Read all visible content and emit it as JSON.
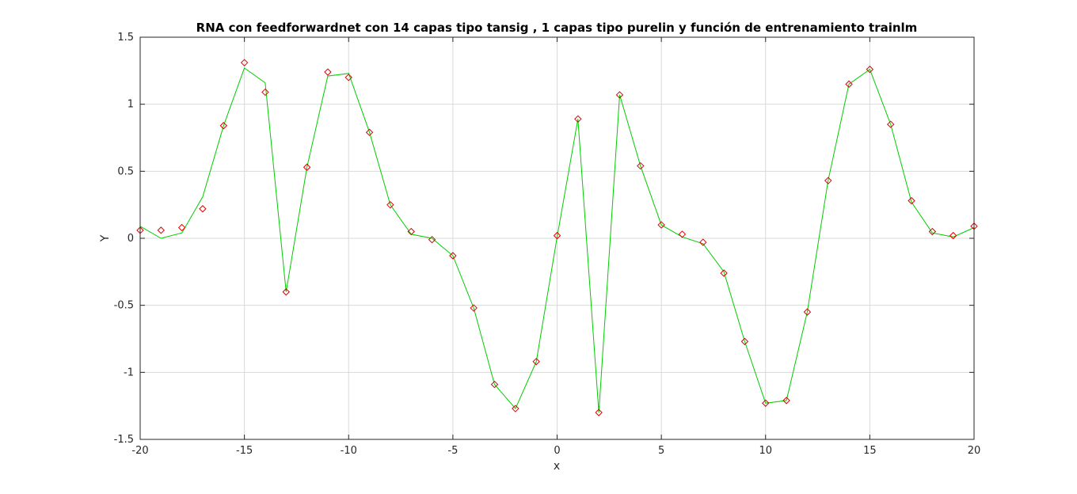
{
  "chart_data": {
    "type": "line",
    "title": "RNA con feedforwardnet con 14 capas tipo tansig , 1 capas tipo purelin y función de entrenamiento trainlm",
    "xlabel": "x",
    "ylabel": "Y",
    "xlim": [
      -20,
      20
    ],
    "ylim": [
      -1.5,
      1.5
    ],
    "xticks": [
      -20,
      -15,
      -10,
      -5,
      0,
      5,
      10,
      15,
      20
    ],
    "yticks": [
      -1.5,
      -1,
      -0.5,
      0,
      0.5,
      1,
      1.5
    ],
    "xtick_labels": [
      "-20",
      "-15",
      "-10",
      "-5",
      "0",
      "5",
      "10",
      "15",
      "20"
    ],
    "ytick_labels": [
      "-1.5",
      "-1",
      "-0.5",
      "0",
      "0.5",
      "1",
      "1.5"
    ],
    "grid": true,
    "x": [
      -20,
      -19,
      -18,
      -17,
      -16,
      -15,
      -14,
      -13,
      -12,
      -11,
      -10,
      -9,
      -8,
      -7,
      -6,
      -5,
      -4,
      -3,
      -2,
      -1,
      0,
      1,
      2,
      3,
      4,
      5,
      6,
      7,
      8,
      9,
      10,
      11,
      12,
      13,
      14,
      15,
      16,
      17,
      18,
      19,
      20
    ],
    "series": [
      {
        "style": "line",
        "color": "#00cc00",
        "values": [
          0.09,
          0.0,
          0.04,
          0.31,
          0.84,
          1.27,
          1.16,
          -0.4,
          0.53,
          1.21,
          1.23,
          0.79,
          0.25,
          0.03,
          0.0,
          -0.13,
          -0.52,
          -1.09,
          -1.27,
          -0.92,
          0.01,
          0.89,
          -1.3,
          1.07,
          0.54,
          0.1,
          0.01,
          -0.04,
          -0.25,
          -0.77,
          -1.23,
          -1.21,
          -0.55,
          0.43,
          1.15,
          1.26,
          0.85,
          0.27,
          0.04,
          0.01,
          0.08
        ]
      },
      {
        "style": "markers",
        "marker": "diamond",
        "color": "#e00000",
        "values": [
          0.06,
          0.06,
          0.08,
          0.22,
          0.84,
          1.31,
          1.09,
          -0.4,
          0.53,
          1.24,
          1.2,
          0.79,
          0.25,
          0.05,
          -0.01,
          -0.13,
          -0.52,
          -1.09,
          -1.27,
          -0.92,
          0.02,
          0.89,
          -1.3,
          1.07,
          0.54,
          0.1,
          0.03,
          -0.03,
          -0.26,
          -0.77,
          -1.23,
          -1.21,
          -0.55,
          0.43,
          1.15,
          1.26,
          0.85,
          0.28,
          0.05,
          0.02,
          0.09
        ]
      }
    ]
  }
}
